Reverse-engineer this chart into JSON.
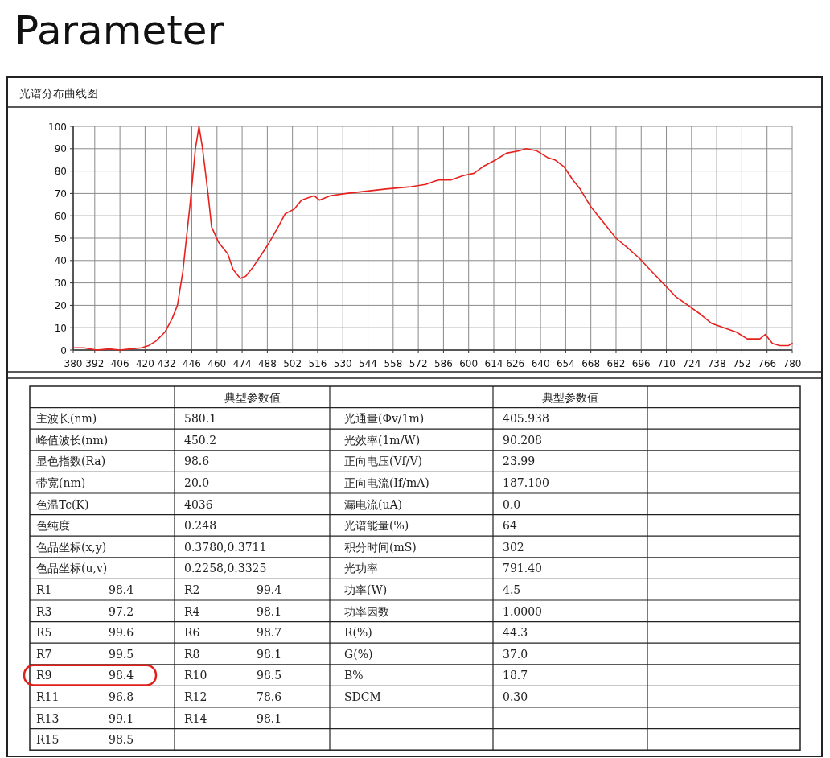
{
  "chart_data": [
    {
      "type": "line",
      "title": "Parameter",
      "subtitle": "光谱分布曲线图",
      "color": "#e8211d",
      "grid": true,
      "x": [
        380,
        386,
        393,
        400,
        406,
        412,
        418,
        422,
        426,
        431,
        435,
        438,
        441,
        445,
        448,
        450,
        452,
        455,
        457,
        461,
        466,
        469,
        473,
        476,
        480,
        485,
        489,
        494,
        498,
        503,
        507,
        514,
        517,
        523,
        532,
        543,
        554,
        568,
        576,
        583,
        590,
        597,
        603,
        608,
        615,
        621,
        628,
        632,
        638,
        644,
        648,
        653,
        658,
        662,
        668,
        675,
        682,
        688,
        695,
        702,
        708,
        715,
        722,
        729,
        735,
        742,
        749,
        755,
        762,
        765,
        769,
        773,
        778,
        780
      ],
      "values": [
        1,
        1,
        0,
        0.5,
        0,
        0.5,
        1,
        2,
        4,
        8,
        14,
        20,
        35,
        65,
        90,
        100,
        90,
        70,
        55,
        48,
        43,
        36,
        32,
        33,
        37,
        43,
        48,
        55,
        61,
        63,
        67,
        69,
        67,
        69,
        70,
        71,
        72,
        73,
        74,
        76,
        76,
        78,
        79,
        82,
        85,
        88,
        89,
        90,
        89,
        86,
        85,
        82,
        76,
        72,
        64,
        57,
        50,
        46,
        41,
        35,
        30,
        24,
        20,
        16,
        12,
        10,
        8,
        5,
        5,
        7,
        3,
        2,
        2,
        3
      ],
      "xlim": [
        380,
        780
      ],
      "ylim": [
        0,
        100
      ],
      "xticks": [
        380,
        392,
        406,
        420,
        432,
        446,
        460,
        474,
        488,
        502,
        516,
        530,
        544,
        558,
        572,
        586,
        600,
        614,
        626,
        640,
        654,
        668,
        682,
        696,
        710,
        724,
        738,
        752,
        766,
        780
      ],
      "yticks": [
        0,
        10,
        20,
        30,
        40,
        50,
        60,
        70,
        80,
        90,
        100
      ]
    },
    {
      "type": "other",
      "annotations": [
        "典型参数值",
        "典型参数值",
        "主波长(nm)",
        "580.1",
        "光通量(Φv/1m)",
        "405.938",
        "峰值波长(nm)",
        "450.2",
        "光效率(1m/W)",
        "90.208",
        "显色指数(Ra)",
        "98.6",
        "正向电压(Vf/V)",
        "23.99",
        "带宽(nm)",
        "20.0",
        "正向电流(If/mA)",
        "187.100",
        "色温Tc(K)",
        "4036",
        "漏电流(uA)",
        "0.0",
        "色纯度",
        "0.248",
        "光谱能量(%)",
        "64",
        "色品坐标(x,y)",
        "0.3780,0.3711",
        "积分时间(mS)",
        "302",
        "色品坐标(u,v)",
        "0.2258,0.3325",
        "光功率",
        "791.40",
        "R1",
        "98.4",
        "R2",
        "99.4",
        "功率(W)",
        "4.5",
        "R3",
        "97.2",
        "R4",
        "98.1",
        "功率因数",
        "1.0000",
        "R5",
        "99.6",
        "R6",
        "98.7",
        "R(%)",
        "44.3",
        "R7",
        "99.5",
        "R8",
        "98.1",
        "G(%)",
        "37.0",
        "R9",
        "98.4",
        "R10",
        "98.5",
        "B%",
        "18.7",
        "R11",
        "96.8",
        "R12",
        "78.6",
        "SDCM",
        "0.30",
        "R13",
        "99.1",
        "R14",
        "98.1",
        "R15",
        "98.5"
      ]
    }
  ]
}
